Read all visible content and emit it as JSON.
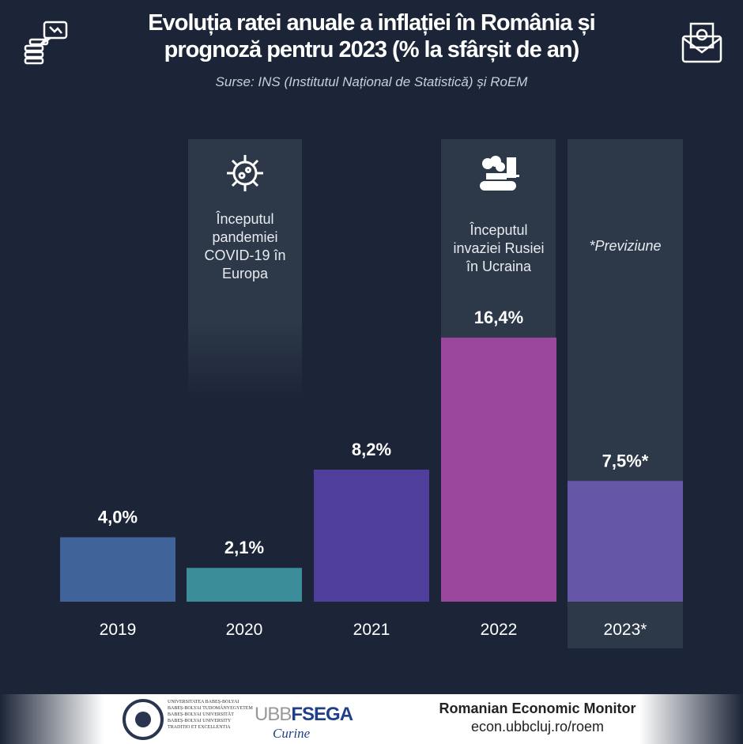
{
  "header": {
    "title": "Evoluția ratei anuale a inflației în România și prognoză pentru 2023 (% la sfârșit de an)",
    "sources": "Surse:  INS (Institutul Național de Statistică)  și RoEM"
  },
  "annotations": {
    "covid": "Începutul pandemiei COVID-19 în Europa",
    "war": "Începutul invaziei Rusiei în Ucraina",
    "forecast": "*Previziune"
  },
  "chart_data": {
    "type": "bar",
    "title": "Evoluția ratei anuale a inflației în România și prognoză pentru 2023 (% la sfârșit de an)",
    "categories": [
      "2019",
      "2020",
      "2021",
      "2022",
      "2023*"
    ],
    "values": [
      4.0,
      2.1,
      8.2,
      16.4,
      7.5
    ],
    "data_labels": [
      "4,0%",
      "2,1%",
      "8,2%",
      "16,4%",
      "7,5%*"
    ],
    "colors": [
      "#40639a",
      "#3b8d99",
      "#4f3e9b",
      "#9a479d",
      "#6656a8"
    ],
    "xlabel": "",
    "ylabel": "%",
    "ylim": [
      0,
      16.4
    ],
    "grid": false
  },
  "footer": {
    "monitor": "Romanian Economic Monitor",
    "url": "econ.ubbcluj.ro/roem",
    "ubb_logo_text": [
      "UNIVERSITATEA BABEȘ-BOLYAI",
      "BABEȘ-BOLYAI TUDOMÁNYEGYETEM",
      "BABEȘ-BOLYAI UNIVERSITÄT",
      "BABEȘ-BOLYAI UNIVERSITY",
      "TRADITIO ET EXCELLENTIA"
    ],
    "fsega_logo": {
      "u": "UBB",
      "f": "FSEGA",
      "sig": "Curine"
    }
  }
}
